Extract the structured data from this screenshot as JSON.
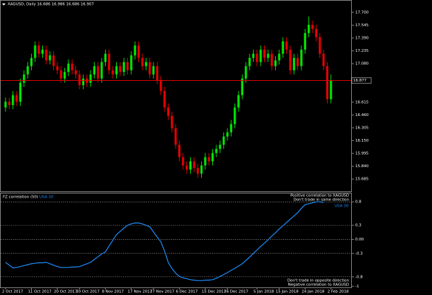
{
  "chart_data": [
    {
      "type": "candlestick",
      "title": "XAGUSD, Daily  16.686 16.986 16.686 16.907",
      "categories": [
        "2 Oct 2017",
        null,
        null,
        null,
        null,
        null,
        null,
        "11 Oct 2017",
        null,
        null,
        null,
        null,
        null,
        null,
        "20 Oct 2017",
        null,
        null,
        null,
        null,
        null,
        "30 Oct 2017",
        null,
        null,
        null,
        null,
        null,
        null,
        "8 Nov 2017",
        null,
        null,
        null,
        null,
        null,
        null,
        "17 Nov 2017",
        null,
        null,
        null,
        null,
        null,
        "27 Nov 2017",
        null,
        null,
        null,
        null,
        null,
        null,
        "6 Dec 2017",
        null,
        null,
        null,
        null,
        null,
        null,
        "15 Dec 2017",
        null,
        null,
        null,
        null,
        null,
        "26 Dec 2017",
        null,
        null,
        null,
        null,
        null,
        null,
        null,
        "5 Jan 2018",
        null,
        null,
        null,
        null,
        null,
        "15 Jan 2018",
        null,
        null,
        null,
        null,
        null,
        null,
        "24 Jan 2018",
        null,
        null,
        null,
        null,
        null,
        null,
        "2 Feb 2018"
      ],
      "open": [
        16.55,
        16.62,
        16.58,
        16.7,
        16.62,
        16.85,
        16.95,
        17.05,
        17.15,
        17.3,
        17.2,
        17.25,
        17.12,
        17.18,
        17.05,
        17.0,
        16.9,
        16.98,
        17.08,
        17.0,
        16.95,
        16.82,
        16.9,
        16.85,
        16.95,
        17.05,
        16.9,
        17.1,
        17.2,
        17.0,
        16.95,
        17.05,
        16.98,
        17.1,
        17.0,
        17.18,
        17.3,
        17.15,
        17.05,
        17.1,
        16.95,
        17.05,
        16.88,
        16.75,
        16.55,
        16.45,
        16.3,
        16.1,
        15.95,
        15.85,
        15.8,
        15.9,
        15.82,
        15.75,
        15.85,
        15.95,
        15.9,
        16.0,
        16.05,
        16.1,
        16.2,
        16.25,
        16.35,
        16.55,
        16.7,
        16.9,
        17.05,
        17.15,
        17.2,
        17.1,
        17.25,
        17.15,
        17.2,
        17.05,
        17.12,
        17.2,
        17.35,
        17.25,
        17.0,
        17.15,
        17.05,
        17.25,
        17.45,
        17.55,
        17.5,
        17.4,
        17.2,
        17.05,
        16.65
      ],
      "high": [
        16.67,
        16.67,
        16.75,
        16.75,
        16.9,
        17.0,
        17.1,
        17.2,
        17.35,
        17.35,
        17.3,
        17.3,
        17.23,
        17.23,
        17.1,
        17.05,
        17.03,
        17.13,
        17.13,
        17.05,
        17.0,
        16.95,
        16.95,
        17.0,
        17.1,
        17.1,
        17.15,
        17.25,
        17.25,
        17.05,
        17.1,
        17.1,
        17.15,
        17.15,
        17.23,
        17.35,
        17.35,
        17.2,
        17.15,
        17.15,
        17.1,
        17.1,
        16.93,
        16.8,
        16.6,
        16.5,
        16.35,
        16.15,
        16.0,
        15.9,
        15.95,
        15.95,
        15.87,
        15.9,
        16.0,
        16.0,
        16.05,
        16.1,
        16.15,
        16.25,
        16.3,
        16.4,
        16.6,
        16.75,
        16.95,
        17.1,
        17.2,
        17.25,
        17.25,
        17.3,
        17.3,
        17.25,
        17.25,
        17.17,
        17.25,
        17.4,
        17.4,
        17.3,
        17.2,
        17.2,
        17.3,
        17.5,
        17.65,
        17.6,
        17.55,
        17.45,
        17.25,
        17.1,
        16.95
      ],
      "low": [
        16.5,
        16.53,
        16.53,
        16.57,
        16.57,
        16.8,
        16.9,
        17.0,
        17.1,
        17.15,
        17.15,
        17.07,
        17.07,
        17.0,
        16.95,
        16.85,
        16.85,
        16.93,
        16.95,
        16.9,
        16.77,
        16.77,
        16.8,
        16.8,
        16.9,
        16.85,
        16.85,
        17.05,
        16.95,
        16.9,
        16.9,
        16.93,
        16.93,
        16.95,
        16.95,
        17.13,
        17.1,
        17.0,
        17.0,
        16.9,
        16.9,
        16.83,
        16.7,
        16.5,
        16.4,
        16.25,
        16.05,
        15.9,
        15.8,
        15.75,
        15.75,
        15.77,
        15.7,
        15.7,
        15.8,
        15.85,
        15.85,
        15.95,
        16.0,
        16.05,
        16.15,
        16.2,
        16.3,
        16.5,
        16.65,
        16.85,
        17.0,
        17.1,
        17.05,
        17.05,
        17.1,
        17.1,
        17.0,
        17.0,
        17.07,
        17.15,
        17.2,
        16.95,
        16.95,
        17.0,
        17.0,
        17.2,
        17.4,
        17.45,
        17.35,
        17.15,
        17.0,
        16.6,
        16.6
      ],
      "close": [
        16.62,
        16.58,
        16.7,
        16.62,
        16.85,
        16.95,
        17.05,
        17.15,
        17.3,
        17.2,
        17.25,
        17.12,
        17.18,
        17.05,
        17.0,
        16.9,
        16.98,
        17.08,
        17.0,
        16.95,
        16.82,
        16.9,
        16.85,
        16.95,
        17.05,
        16.9,
        17.1,
        17.2,
        17.0,
        16.95,
        17.05,
        16.98,
        17.1,
        17.0,
        17.18,
        17.3,
        17.15,
        17.05,
        17.1,
        16.95,
        17.05,
        16.88,
        16.75,
        16.55,
        16.45,
        16.3,
        16.1,
        15.95,
        15.85,
        15.8,
        15.9,
        15.82,
        15.75,
        15.85,
        15.95,
        15.9,
        16.0,
        16.05,
        16.1,
        16.2,
        16.25,
        16.35,
        16.55,
        16.7,
        16.9,
        17.05,
        17.15,
        17.2,
        17.1,
        17.25,
        17.15,
        17.2,
        17.05,
        17.12,
        17.2,
        17.35,
        17.25,
        17.0,
        17.15,
        17.05,
        17.25,
        17.45,
        17.55,
        17.5,
        17.4,
        17.2,
        17.05,
        16.65,
        16.88
      ],
      "up_color": "#00e600",
      "down_color": "#e60000",
      "current_price": {
        "value": 16.877,
        "label": "16.877"
      },
      "price_line_color": "#e60000",
      "ylim": [
        15.545,
        17.766
      ],
      "yticks": [
        {
          "value": 17.7,
          "label": "17.700"
        },
        {
          "value": 17.545,
          "label": "17.545"
        },
        {
          "value": 17.39,
          "label": "17.390"
        },
        {
          "value": 17.235,
          "label": "17.235"
        },
        {
          "value": 17.08,
          "label": "17.080"
        },
        {
          "value": 16.615,
          "label": "16.615"
        },
        {
          "value": 16.46,
          "label": "16.460"
        },
        {
          "value": 16.305,
          "label": "16.305"
        },
        {
          "value": 16.15,
          "label": "16.150"
        },
        {
          "value": 15.995,
          "label": "15.995"
        },
        {
          "value": 15.84,
          "label": "15.840"
        },
        {
          "value": 15.685,
          "label": "15.685"
        }
      ]
    },
    {
      "type": "line",
      "title": "FZ correlation (50)",
      "series": [
        {
          "name": "USA 30",
          "color": "#1e90ff",
          "values": [
            -0.49,
            -0.55,
            -0.61,
            -0.6,
            -0.58,
            -0.56,
            -0.54,
            -0.52,
            -0.51,
            -0.5,
            -0.5,
            -0.49,
            -0.52,
            -0.55,
            -0.58,
            -0.6,
            -0.6,
            -0.6,
            -0.59,
            -0.59,
            -0.58,
            -0.55,
            -0.52,
            -0.49,
            -0.43,
            -0.37,
            -0.31,
            -0.27,
            -0.14,
            -0.02,
            0.1,
            0.17,
            0.24,
            0.3,
            0.33,
            0.35,
            0.35,
            0.33,
            0.3,
            0.27,
            0.16,
            0.05,
            -0.05,
            -0.25,
            -0.49,
            -0.62,
            -0.72,
            -0.79,
            -0.82,
            -0.84,
            -0.86,
            -0.87,
            -0.88,
            -0.88,
            -0.87,
            -0.87,
            -0.86,
            -0.83,
            -0.79,
            -0.75,
            -0.71,
            -0.66,
            -0.62,
            -0.57,
            -0.52,
            -0.45,
            -0.38,
            -0.3,
            -0.23,
            -0.15,
            -0.08,
            -0.01,
            0.07,
            0.14,
            0.22,
            0.29,
            0.36,
            0.43,
            0.5,
            0.57,
            0.66,
            0.74,
            0.76,
            0.78,
            0.8,
            0.8,
            0.79,
            null,
            null
          ]
        }
      ],
      "ylim": [
        -1.01,
        0.98
      ],
      "yticks": [
        0.8,
        0.3,
        {
          "value": 0,
          "label": "0.00"
        },
        -0.3,
        -0.8,
        -1
      ],
      "levels": [
        0.8,
        0.3,
        0,
        -0.3,
        -0.8
      ],
      "annotations": [
        "Positive correlation to XAGUSD",
        "Don't trade in same direction",
        "Don't trade in opposite direction",
        "Negative correlation to XAGUSD"
      ]
    }
  ]
}
